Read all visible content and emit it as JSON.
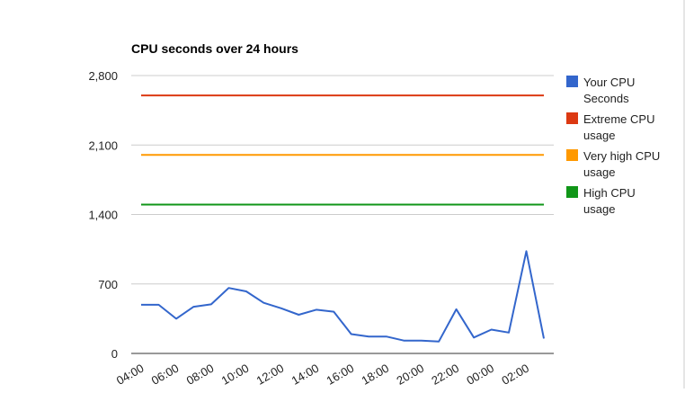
{
  "chart_data": {
    "type": "line",
    "title": "CPU seconds over 24 hours",
    "xlabel": "",
    "ylabel": "",
    "ylim": [
      0,
      2800
    ],
    "y_ticks": [
      0,
      700,
      1400,
      2100,
      2800
    ],
    "y_tick_labels": [
      "0",
      "700",
      "1,400",
      "2,100",
      "2,800"
    ],
    "x_tick_labels": [
      "04:00",
      "06:00",
      "08:00",
      "10:00",
      "12:00",
      "14:00",
      "16:00",
      "18:00",
      "20:00",
      "22:00",
      "00:00",
      "02:00"
    ],
    "grid": true,
    "legend_position": "right",
    "series": [
      {
        "name": "Your CPU Seconds",
        "color": "#3366cc",
        "values": [
          490,
          490,
          350,
          470,
          495,
          660,
          625,
          510,
          455,
          390,
          440,
          420,
          195,
          170,
          170,
          130,
          130,
          120,
          445,
          160,
          240,
          210,
          1030,
          150
        ]
      },
      {
        "name": "Extreme CPU usage",
        "color": "#dc3912",
        "values": [
          2600,
          2600,
          2600,
          2600,
          2600,
          2600,
          2600,
          2600,
          2600,
          2600,
          2600,
          2600,
          2600,
          2600,
          2600,
          2600,
          2600,
          2600,
          2600,
          2600,
          2600,
          2600,
          2600,
          2600
        ]
      },
      {
        "name": "Very high CPU usage",
        "color": "#ff9900",
        "values": [
          2000,
          2000,
          2000,
          2000,
          2000,
          2000,
          2000,
          2000,
          2000,
          2000,
          2000,
          2000,
          2000,
          2000,
          2000,
          2000,
          2000,
          2000,
          2000,
          2000,
          2000,
          2000,
          2000,
          2000
        ]
      },
      {
        "name": "High CPU usage",
        "color": "#109618",
        "values": [
          1500,
          1500,
          1500,
          1500,
          1500,
          1500,
          1500,
          1500,
          1500,
          1500,
          1500,
          1500,
          1500,
          1500,
          1500,
          1500,
          1500,
          1500,
          1500,
          1500,
          1500,
          1500,
          1500,
          1500
        ]
      }
    ],
    "legend": [
      [
        "Your CPU",
        "Seconds"
      ],
      [
        "Extreme CPU",
        "usage"
      ],
      [
        "Very high CPU",
        "usage"
      ],
      [
        "High CPU",
        "usage"
      ]
    ]
  }
}
